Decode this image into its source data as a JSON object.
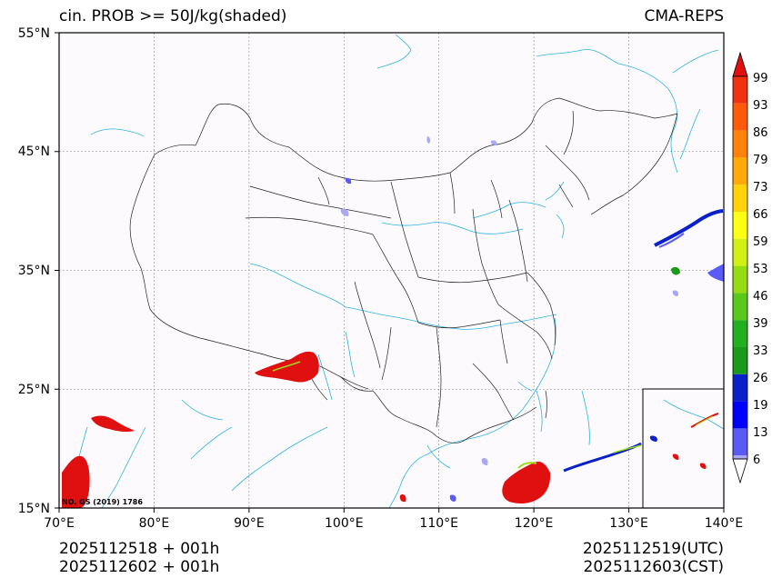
{
  "title": {
    "left": "cin. PROB >= 50J/kg(shaded)",
    "right": "CMA-REPS"
  },
  "map": {
    "lon_range": [
      70,
      140
    ],
    "lat_range": [
      15,
      55
    ],
    "lon_ticks": [
      "70°E",
      "80°E",
      "90°E",
      "100°E",
      "110°E",
      "120°E",
      "130°E",
      "140°E"
    ],
    "lat_ticks": [
      "15°N",
      "25°N",
      "35°N",
      "45°N",
      "55°N"
    ],
    "lon_tick_values": [
      70,
      80,
      90,
      100,
      110,
      120,
      130,
      140
    ],
    "lat_tick_values": [
      15,
      25,
      35,
      45,
      55
    ],
    "credit": "NO. GS (2019) 1786"
  },
  "colorbar": {
    "levels": [
      "6",
      "13",
      "19",
      "26",
      "33",
      "39",
      "46",
      "53",
      "59",
      "66",
      "73",
      "79",
      "86",
      "93",
      "99"
    ],
    "colors": [
      "#a8a8f5",
      "#5a5af5",
      "#0000ff",
      "#0a20c8",
      "#1a9a1a",
      "#22b022",
      "#5ac81a",
      "#96dc14",
      "#d2f014",
      "#ffff14",
      "#ffd20a",
      "#ffaa0a",
      "#ff820a",
      "#ff5a0a",
      "#f03210",
      "#e01010"
    ]
  },
  "footer": {
    "left_line1": "2025112518  +  001h",
    "left_line2": "2025112602  +  001h",
    "right_line1": "2025112519(UTC)",
    "right_line2": "2025112603(CST)"
  }
}
